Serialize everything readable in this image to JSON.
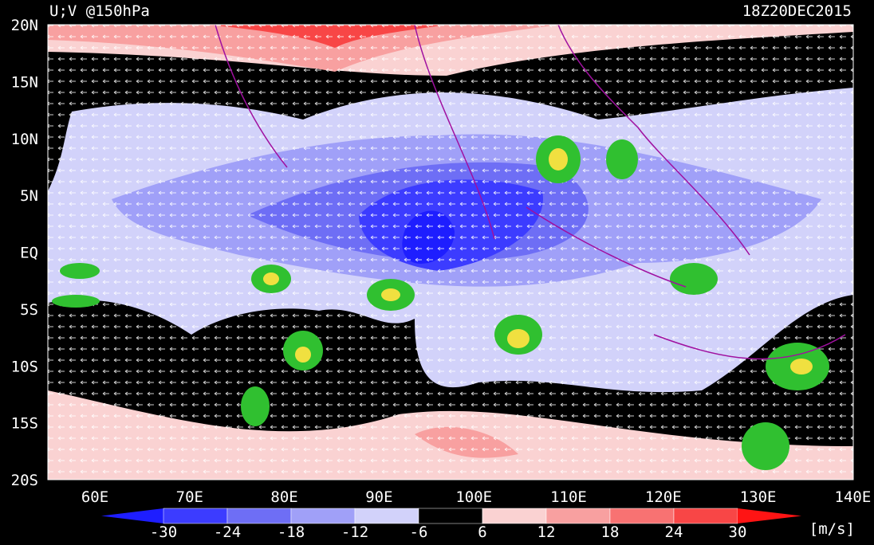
{
  "header": {
    "title": "U;V @150hPa",
    "time": "18Z20DEC2015"
  },
  "map": {
    "lat_labels": [
      "20N",
      "15N",
      "10N",
      "5N",
      "EQ",
      "5S",
      "10S",
      "15S",
      "20S"
    ],
    "lon_labels": [
      "60E",
      "70E",
      "80E",
      "90E",
      "100E",
      "110E",
      "120E",
      "130E",
      "140E"
    ]
  },
  "colorbar": {
    "levels": [
      -30,
      -24,
      -18,
      -12,
      -6,
      6,
      12,
      18,
      24,
      30
    ],
    "colors": [
      "#1e1eff",
      "#3c3cff",
      "#6e6ef5",
      "#a0a0f8",
      "#d2d2fa",
      "#000000",
      "#fad2d2",
      "#f8a0a0",
      "#f87272",
      "#f84646",
      "#ff1414"
    ],
    "unit": "[m/s]"
  }
}
